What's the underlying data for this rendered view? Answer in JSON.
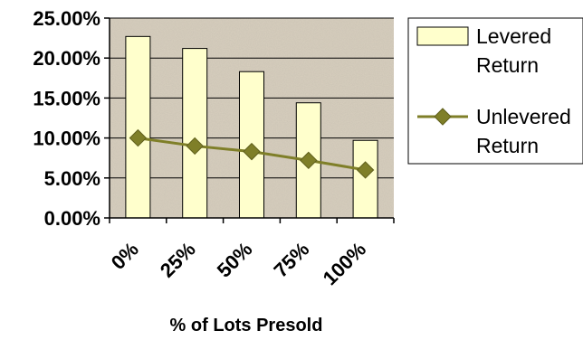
{
  "chart_data": {
    "type": "bar",
    "categories": [
      "0%",
      "25%",
      "50%",
      "75%",
      "100%"
    ],
    "xlabel": "% of Lots Presold",
    "ylabel": "",
    "ylim": [
      0,
      0.25
    ],
    "yticks": [
      "0.00%",
      "5.00%",
      "10.00%",
      "15.00%",
      "20.00%",
      "25.00%"
    ],
    "grid": true,
    "legend_position": "right",
    "series": [
      {
        "name_lines": [
          "Levered",
          "Return"
        ],
        "type": "bar",
        "values": [
          0.227,
          0.212,
          0.183,
          0.144,
          0.097
        ],
        "color": "#FFFFCC"
      },
      {
        "name_lines": [
          "Unlevered",
          "Return"
        ],
        "type": "line",
        "marker": "diamond",
        "values": [
          0.1,
          0.09,
          0.083,
          0.072,
          0.06
        ],
        "color": "#7F7F28"
      }
    ]
  }
}
